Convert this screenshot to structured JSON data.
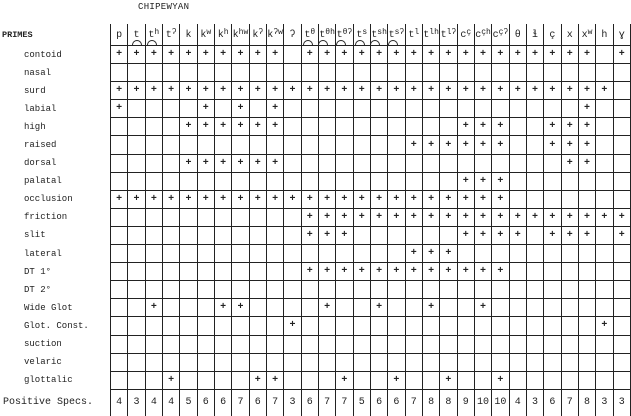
{
  "title": "CHIPEWYAN",
  "primes_label": "PRIMES",
  "columns": [
    {
      "base": "p",
      "sup": ""
    },
    {
      "base": "t",
      "sup": "",
      "arc": true
    },
    {
      "base": "t",
      "sup": "h",
      "arc": true
    },
    {
      "base": "t",
      "sup": "ʔ"
    },
    {
      "base": "k",
      "sup": ""
    },
    {
      "base": "k",
      "sup": "w"
    },
    {
      "base": "k",
      "sup": "h"
    },
    {
      "base": "k",
      "sup": "hw"
    },
    {
      "base": "k",
      "sup": "ʔ"
    },
    {
      "base": "k",
      "sup": "ʔw"
    },
    {
      "base": "ʔ",
      "sup": ""
    },
    {
      "base": "t",
      "sup": "θ",
      "arc": true
    },
    {
      "base": "t",
      "sup": "θh",
      "arc": true
    },
    {
      "base": "t",
      "sup": "θʔ",
      "arc": true
    },
    {
      "base": "t",
      "sup": "s",
      "arc": true
    },
    {
      "base": "t",
      "sup": "sh",
      "arc": true
    },
    {
      "base": "t",
      "sup": "sʔ",
      "arc": true
    },
    {
      "base": "t",
      "sup": "l"
    },
    {
      "base": "t",
      "sup": "lh"
    },
    {
      "base": "t",
      "sup": "lʔ"
    },
    {
      "base": "c",
      "sup": "ç"
    },
    {
      "base": "c",
      "sup": "çh"
    },
    {
      "base": "c",
      "sup": "çʔ"
    },
    {
      "base": "θ",
      "sup": ""
    },
    {
      "base": "ɬ",
      "sup": ""
    },
    {
      "base": "ç",
      "sup": ""
    },
    {
      "base": "x",
      "sup": ""
    },
    {
      "base": "x",
      "sup": "w"
    },
    {
      "base": "h",
      "sup": ""
    },
    {
      "base": "ɣ",
      "sup": ""
    }
  ],
  "features": [
    {
      "label": "contoid",
      "plus": [
        0,
        1,
        2,
        3,
        4,
        5,
        6,
        7,
        8,
        9,
        11,
        12,
        13,
        14,
        15,
        16,
        17,
        18,
        19,
        20,
        21,
        22,
        23,
        24,
        25,
        26,
        27,
        29
      ]
    },
    {
      "label": "nasal",
      "plus": []
    },
    {
      "label": "surd",
      "plus": [
        0,
        1,
        2,
        3,
        4,
        5,
        6,
        7,
        8,
        9,
        10,
        11,
        12,
        13,
        14,
        15,
        16,
        17,
        18,
        19,
        20,
        21,
        22,
        23,
        24,
        25,
        26,
        27,
        28
      ]
    },
    {
      "label": "labial",
      "plus": [
        0,
        5,
        7,
        9,
        27
      ]
    },
    {
      "label": "high",
      "plus": [
        4,
        5,
        6,
        7,
        8,
        9,
        20,
        21,
        22,
        25,
        26,
        27
      ]
    },
    {
      "label": "raised",
      "plus": [
        17,
        18,
        19,
        20,
        21,
        22,
        25,
        26,
        27
      ]
    },
    {
      "label": "dorsal",
      "plus": [
        4,
        5,
        6,
        7,
        8,
        9,
        26,
        27
      ]
    },
    {
      "label": "palatal",
      "plus": [
        20,
        21,
        22
      ]
    },
    {
      "label": "occlusion",
      "plus": [
        0,
        1,
        2,
        3,
        4,
        5,
        6,
        7,
        8,
        9,
        10,
        11,
        12,
        13,
        14,
        15,
        16,
        17,
        18,
        19,
        20,
        21,
        22
      ]
    },
    {
      "label": "friction",
      "plus": [
        11,
        12,
        13,
        14,
        15,
        16,
        17,
        18,
        19,
        20,
        21,
        22,
        23,
        24,
        25,
        26,
        27,
        28,
        29
      ]
    },
    {
      "label": "slit",
      "plus": [
        11,
        12,
        13,
        20,
        21,
        22,
        23,
        25,
        26,
        27,
        29
      ]
    },
    {
      "label": "lateral",
      "plus": [
        17,
        18,
        19
      ]
    },
    {
      "label": "DT 1°",
      "plus": [
        11,
        12,
        13,
        14,
        15,
        16,
        17,
        18,
        19,
        20,
        21,
        22
      ]
    },
    {
      "label": "DT 2°",
      "plus": []
    },
    {
      "label": "Wide Glot",
      "plus": [
        2,
        6,
        7,
        12,
        15,
        18,
        21
      ]
    },
    {
      "label": "Glot. Const.",
      "plus": [
        10,
        28
      ]
    },
    {
      "label": "suction",
      "plus": []
    },
    {
      "label": "velaric",
      "plus": []
    },
    {
      "label": "glottalic",
      "plus": [
        3,
        8,
        9,
        13,
        16,
        19,
        22
      ]
    }
  ],
  "plus_mark": "+",
  "positive_specs_label": "Positive Specs.",
  "positive_specs": [
    "4",
    "3",
    "4",
    "4",
    "5",
    "6",
    "6",
    "7",
    "6",
    "7",
    "3",
    "6",
    "7",
    "7",
    "5",
    "6",
    "6",
    "7",
    "8",
    "8",
    "9",
    "10",
    "10",
    "4",
    "3",
    "6",
    "7",
    "8",
    "3",
    "3"
  ]
}
